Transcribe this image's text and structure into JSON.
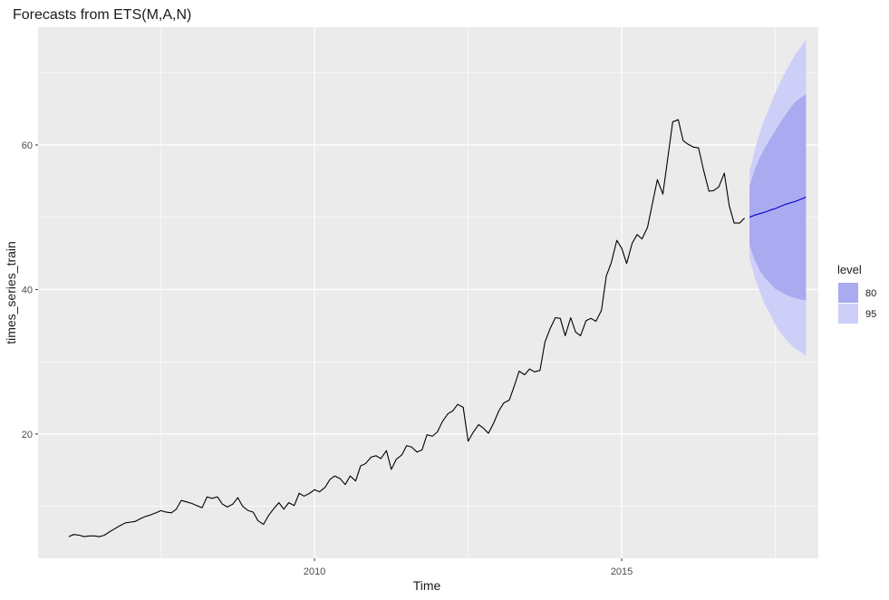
{
  "chart_data": {
    "type": "line",
    "title": "Forecasts from ETS(M,A,N)",
    "xlabel": "Time",
    "ylabel": "times_series_train",
    "xlim": [
      2005.5,
      2018.2
    ],
    "ylim": [
      2.8,
      76.3
    ],
    "x_ticks": [
      2010,
      2015
    ],
    "x_minor_ticks": [
      2007.5,
      2012.5,
      2017.5
    ],
    "y_ticks": [
      20,
      40,
      60
    ],
    "y_minor_ticks": [
      10,
      30,
      50,
      70
    ],
    "grid": true,
    "background": "#ebebeb",
    "gridline_color": "#ffffff",
    "legend": {
      "title": "level",
      "position": "right",
      "entries": [
        {
          "label": "80",
          "color": "#aaaaf0"
        },
        {
          "label": "95",
          "color": "#cdcff8"
        }
      ]
    },
    "series": [
      {
        "role": "history",
        "color": "#000000",
        "points": [
          [
            2006.0,
            5.8
          ],
          [
            2006.08,
            6.1
          ],
          [
            2006.17,
            6.0
          ],
          [
            2006.25,
            5.8
          ],
          [
            2006.33,
            5.9
          ],
          [
            2006.42,
            5.9
          ],
          [
            2006.5,
            5.8
          ],
          [
            2006.58,
            6.0
          ],
          [
            2006.67,
            6.5
          ],
          [
            2006.75,
            6.9
          ],
          [
            2006.83,
            7.3
          ],
          [
            2006.92,
            7.7
          ],
          [
            2007.0,
            7.8
          ],
          [
            2007.08,
            7.9
          ],
          [
            2007.17,
            8.3
          ],
          [
            2007.25,
            8.6
          ],
          [
            2007.33,
            8.8
          ],
          [
            2007.42,
            9.1
          ],
          [
            2007.5,
            9.4
          ],
          [
            2007.58,
            9.2
          ],
          [
            2007.67,
            9.1
          ],
          [
            2007.75,
            9.6
          ],
          [
            2007.83,
            10.8
          ],
          [
            2007.92,
            10.6
          ],
          [
            2008.0,
            10.4
          ],
          [
            2008.08,
            10.1
          ],
          [
            2008.17,
            9.8
          ],
          [
            2008.25,
            11.3
          ],
          [
            2008.33,
            11.1
          ],
          [
            2008.42,
            11.3
          ],
          [
            2008.5,
            10.3
          ],
          [
            2008.58,
            9.9
          ],
          [
            2008.67,
            10.3
          ],
          [
            2008.75,
            11.2
          ],
          [
            2008.83,
            10.0
          ],
          [
            2008.92,
            9.4
          ],
          [
            2009.0,
            9.2
          ],
          [
            2009.08,
            8.0
          ],
          [
            2009.17,
            7.5
          ],
          [
            2009.25,
            8.7
          ],
          [
            2009.33,
            9.6
          ],
          [
            2009.42,
            10.5
          ],
          [
            2009.5,
            9.6
          ],
          [
            2009.58,
            10.5
          ],
          [
            2009.67,
            10.1
          ],
          [
            2009.75,
            11.8
          ],
          [
            2009.83,
            11.4
          ],
          [
            2009.92,
            11.8
          ],
          [
            2010.0,
            12.3
          ],
          [
            2010.08,
            12.0
          ],
          [
            2010.17,
            12.6
          ],
          [
            2010.25,
            13.7
          ],
          [
            2010.33,
            14.2
          ],
          [
            2010.42,
            13.8
          ],
          [
            2010.5,
            13.0
          ],
          [
            2010.58,
            14.2
          ],
          [
            2010.67,
            13.5
          ],
          [
            2010.75,
            15.6
          ],
          [
            2010.83,
            15.9
          ],
          [
            2010.92,
            16.8
          ],
          [
            2011.0,
            17.0
          ],
          [
            2011.08,
            16.6
          ],
          [
            2011.17,
            17.7
          ],
          [
            2011.25,
            15.1
          ],
          [
            2011.33,
            16.5
          ],
          [
            2011.42,
            17.1
          ],
          [
            2011.5,
            18.4
          ],
          [
            2011.58,
            18.2
          ],
          [
            2011.67,
            17.5
          ],
          [
            2011.75,
            17.8
          ],
          [
            2011.83,
            19.9
          ],
          [
            2011.92,
            19.7
          ],
          [
            2012.0,
            20.3
          ],
          [
            2012.08,
            21.7
          ],
          [
            2012.17,
            22.8
          ],
          [
            2012.25,
            23.2
          ],
          [
            2012.33,
            24.1
          ],
          [
            2012.42,
            23.7
          ],
          [
            2012.5,
            19.0
          ],
          [
            2012.58,
            20.2
          ],
          [
            2012.67,
            21.3
          ],
          [
            2012.75,
            20.8
          ],
          [
            2012.83,
            20.1
          ],
          [
            2012.92,
            21.6
          ],
          [
            2013.0,
            23.2
          ],
          [
            2013.08,
            24.3
          ],
          [
            2013.17,
            24.7
          ],
          [
            2013.25,
            26.6
          ],
          [
            2013.33,
            28.7
          ],
          [
            2013.42,
            28.2
          ],
          [
            2013.5,
            29.0
          ],
          [
            2013.58,
            28.6
          ],
          [
            2013.67,
            28.8
          ],
          [
            2013.75,
            32.7
          ],
          [
            2013.83,
            34.5
          ],
          [
            2013.92,
            36.1
          ],
          [
            2014.0,
            36.0
          ],
          [
            2014.08,
            33.6
          ],
          [
            2014.17,
            36.1
          ],
          [
            2014.25,
            34.1
          ],
          [
            2014.33,
            33.6
          ],
          [
            2014.42,
            35.7
          ],
          [
            2014.5,
            36.0
          ],
          [
            2014.58,
            35.6
          ],
          [
            2014.67,
            37.1
          ],
          [
            2014.75,
            41.9
          ],
          [
            2014.83,
            43.7
          ],
          [
            2014.92,
            46.8
          ],
          [
            2015.0,
            45.7
          ],
          [
            2015.08,
            43.6
          ],
          [
            2015.17,
            46.4
          ],
          [
            2015.25,
            47.6
          ],
          [
            2015.33,
            47.0
          ],
          [
            2015.42,
            48.6
          ],
          [
            2015.5,
            51.9
          ],
          [
            2015.58,
            55.2
          ],
          [
            2015.67,
            53.2
          ],
          [
            2015.75,
            58.2
          ],
          [
            2015.83,
            63.2
          ],
          [
            2015.92,
            63.5
          ],
          [
            2016.0,
            60.6
          ],
          [
            2016.08,
            60.1
          ],
          [
            2016.17,
            59.7
          ],
          [
            2016.25,
            59.6
          ],
          [
            2016.33,
            56.6
          ],
          [
            2016.42,
            53.6
          ],
          [
            2016.5,
            53.7
          ],
          [
            2016.58,
            54.2
          ],
          [
            2016.67,
            56.1
          ],
          [
            2016.75,
            51.6
          ],
          [
            2016.83,
            49.2
          ],
          [
            2016.92,
            49.2
          ],
          [
            2017.0,
            49.9
          ]
        ]
      },
      {
        "role": "forecast",
        "color": "#0000cc",
        "points": [
          [
            2017.08,
            50.0
          ],
          [
            2017.17,
            50.3
          ],
          [
            2017.25,
            50.5
          ],
          [
            2017.33,
            50.7
          ],
          [
            2017.42,
            51.0
          ],
          [
            2017.5,
            51.2
          ],
          [
            2017.58,
            51.5
          ],
          [
            2017.67,
            51.8
          ],
          [
            2017.75,
            52.0
          ],
          [
            2017.83,
            52.2
          ],
          [
            2017.92,
            52.5
          ],
          [
            2018.0,
            52.8
          ]
        ]
      }
    ],
    "intervals": [
      {
        "level": "95",
        "color": "#cdcff8",
        "x": [
          2017.08,
          2017.17,
          2017.25,
          2017.33,
          2017.42,
          2017.5,
          2017.58,
          2017.67,
          2017.75,
          2017.83,
          2017.92,
          2018.0
        ],
        "lower": [
          44.3,
          41.5,
          39.7,
          37.9,
          36.6,
          35.1,
          34.1,
          33.1,
          32.4,
          31.8,
          31.3,
          30.8
        ],
        "upper": [
          56.4,
          59.4,
          61.8,
          63.7,
          65.5,
          67.2,
          68.7,
          70.2,
          71.4,
          72.6,
          73.6,
          74.6
        ]
      },
      {
        "level": "80",
        "color": "#aaaaf0",
        "x": [
          2017.08,
          2017.17,
          2017.25,
          2017.33,
          2017.42,
          2017.5,
          2017.58,
          2017.67,
          2017.75,
          2017.83,
          2017.92,
          2018.0
        ],
        "lower": [
          46.1,
          44.0,
          42.6,
          41.6,
          40.8,
          40.1,
          39.7,
          39.3,
          39.0,
          38.8,
          38.6,
          38.5
        ],
        "upper": [
          54.3,
          56.7,
          58.3,
          59.6,
          60.9,
          62.0,
          63.1,
          64.2,
          65.2,
          66.0,
          66.6,
          67.0
        ]
      }
    ]
  }
}
